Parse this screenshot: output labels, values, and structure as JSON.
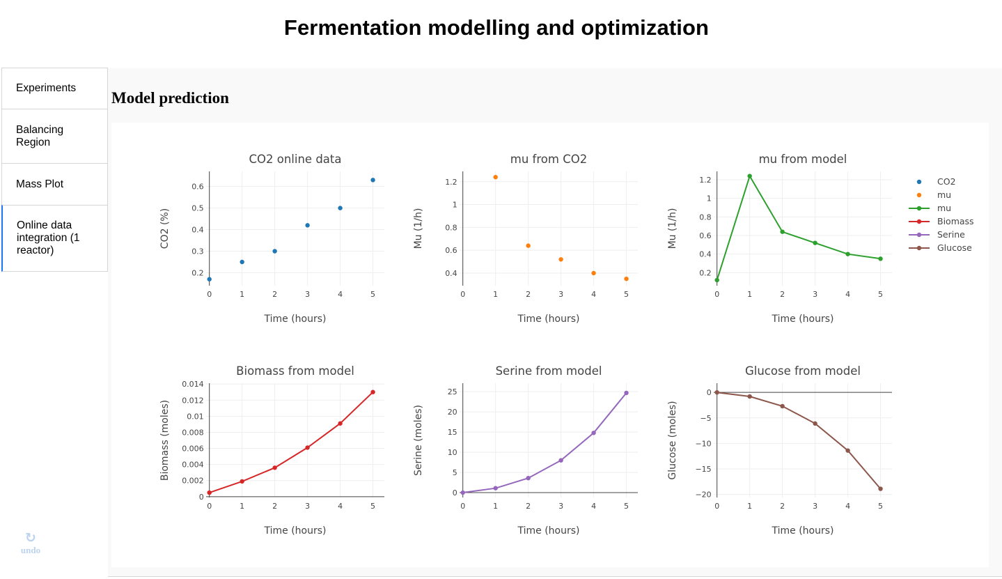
{
  "app": {
    "title": "Fermentation modelling and optimization"
  },
  "sidebar": {
    "tabs": [
      {
        "label": "Experiments",
        "selected": false
      },
      {
        "label": "Balancing Region",
        "selected": false
      },
      {
        "label": "Mass Plot",
        "selected": false
      },
      {
        "label": "Online data integration (1 reactor)",
        "selected": true
      }
    ],
    "undo": {
      "icon": "undo-icon",
      "label": "undo"
    }
  },
  "main": {
    "section_title": "Model prediction"
  },
  "colors": {
    "accent": "#1975FA",
    "co2": "#1f77b4",
    "mu_co2": "#ff7f0e",
    "mu_model": "#2ca02c",
    "biomass": "#d62728",
    "serine": "#9467bd",
    "glucose": "#8c564b"
  },
  "legend": [
    {
      "name": "CO2",
      "mode": "markers",
      "color": "#1f77b4"
    },
    {
      "name": "mu",
      "mode": "markers",
      "color": "#ff7f0e"
    },
    {
      "name": "mu",
      "mode": "lines+markers",
      "color": "#2ca02c"
    },
    {
      "name": "Biomass",
      "mode": "lines+markers",
      "color": "#d62728"
    },
    {
      "name": "Serine",
      "mode": "lines+markers",
      "color": "#9467bd"
    },
    {
      "name": "Glucose",
      "mode": "lines+markers",
      "color": "#8c564b"
    }
  ],
  "chart_data": [
    {
      "type": "scatter",
      "title": "CO2 online data",
      "xlabel": "Time (hours)",
      "ylabel": "CO2 (%)",
      "xlim": [
        -0.1,
        5.35
      ],
      "ylim": [
        0.14,
        0.67
      ],
      "xticks": [
        0,
        1,
        2,
        3,
        4,
        5
      ],
      "yticks": [
        0.2,
        0.3,
        0.4,
        0.5,
        0.6
      ],
      "ytick_labels": [
        "0.2",
        "0.3",
        "0.4",
        "0.5",
        "0.6"
      ],
      "grid": true,
      "series": [
        {
          "name": "CO2",
          "mode": "markers",
          "color": "#1f77b4",
          "x": [
            0,
            1,
            2,
            3,
            4,
            5
          ],
          "y": [
            0.17,
            0.25,
            0.3,
            0.42,
            0.5,
            0.63
          ]
        }
      ]
    },
    {
      "type": "scatter",
      "title": "mu from CO2",
      "xlabel": "Time (hours)",
      "ylabel": "Mu (1/h)",
      "xlim": [
        -0.1,
        5.35
      ],
      "ylim": [
        0.29,
        1.29
      ],
      "xticks": [
        0,
        1,
        2,
        3,
        4,
        5
      ],
      "yticks": [
        0.4,
        0.6,
        0.8,
        1.0,
        1.2
      ],
      "ytick_labels": [
        "0.4",
        "0.6",
        "0.8",
        "1",
        "1.2"
      ],
      "grid": true,
      "series": [
        {
          "name": "mu",
          "mode": "markers",
          "color": "#ff7f0e",
          "x": [
            1,
            2,
            3,
            4,
            5
          ],
          "y": [
            1.24,
            0.64,
            0.52,
            0.4,
            0.35
          ]
        }
      ]
    },
    {
      "type": "line",
      "title": "mu from model",
      "xlabel": "Time (hours)",
      "ylabel": "Mu (1/h)",
      "xlim": [
        -0.1,
        5.35
      ],
      "ylim": [
        0.06,
        1.29
      ],
      "xticks": [
        0,
        1,
        2,
        3,
        4,
        5
      ],
      "yticks": [
        0.2,
        0.4,
        0.6,
        0.8,
        1.0,
        1.2
      ],
      "ytick_labels": [
        "0.2",
        "0.4",
        "0.6",
        "0.8",
        "1",
        "1.2"
      ],
      "grid": true,
      "series": [
        {
          "name": "mu",
          "mode": "lines+markers",
          "color": "#2ca02c",
          "x": [
            0,
            1,
            2,
            3,
            4,
            5
          ],
          "y": [
            0.12,
            1.24,
            0.64,
            0.52,
            0.4,
            0.35
          ]
        }
      ]
    },
    {
      "type": "line",
      "title": "Biomass from model",
      "xlabel": "Time (hours)",
      "ylabel": "Biomass (moles)",
      "xlim": [
        -0.1,
        5.35
      ],
      "ylim": [
        -0.0001,
        0.0141
      ],
      "xticks": [
        0,
        1,
        2,
        3,
        4,
        5
      ],
      "yticks": [
        0,
        0.002,
        0.004,
        0.006,
        0.008,
        0.01,
        0.012,
        0.014
      ],
      "ytick_labels": [
        "0",
        "0.002",
        "0.004",
        "0.006",
        "0.008",
        "0.01",
        "0.012",
        "0.014"
      ],
      "grid": true,
      "series": [
        {
          "name": "Biomass",
          "mode": "lines+markers",
          "color": "#d62728",
          "x": [
            0,
            1,
            2,
            3,
            4,
            5
          ],
          "y": [
            0.0005,
            0.0019,
            0.0036,
            0.0061,
            0.0091,
            0.013
          ]
        }
      ]
    },
    {
      "type": "line",
      "title": "Serine from model",
      "xlabel": "Time (hours)",
      "ylabel": "Serine (moles)",
      "xlim": [
        -0.1,
        5.35
      ],
      "ylim": [
        -1.2,
        27.1
      ],
      "xticks": [
        0,
        1,
        2,
        3,
        4,
        5
      ],
      "yticks": [
        0,
        5,
        10,
        15,
        20,
        25
      ],
      "ytick_labels": [
        "0",
        "5",
        "10",
        "15",
        "20",
        "25"
      ],
      "grid": true,
      "series": [
        {
          "name": "Serine",
          "mode": "lines+markers",
          "color": "#9467bd",
          "x": [
            0,
            1,
            2,
            3,
            4,
            5
          ],
          "y": [
            0.0,
            1.1,
            3.6,
            8.0,
            14.8,
            24.7
          ]
        }
      ]
    },
    {
      "type": "line",
      "title": "Glucose from model",
      "xlabel": "Time (hours)",
      "ylabel": "Glucose (moles)",
      "xlim": [
        -0.1,
        5.35
      ],
      "ylim": [
        -20.6,
        1.8
      ],
      "xticks": [
        0,
        1,
        2,
        3,
        4,
        5
      ],
      "yticks": [
        0,
        -5,
        -10,
        -15,
        -20
      ],
      "ytick_labels": [
        "0",
        "−5",
        "−10",
        "−15",
        "−20"
      ],
      "grid": true,
      "series": [
        {
          "name": "Glucose",
          "mode": "lines+markers",
          "color": "#8c564b",
          "x": [
            0,
            1,
            2,
            3,
            4,
            5
          ],
          "y": [
            0.0,
            -0.8,
            -2.7,
            -6.1,
            -11.4,
            -18.9
          ]
        }
      ]
    }
  ]
}
